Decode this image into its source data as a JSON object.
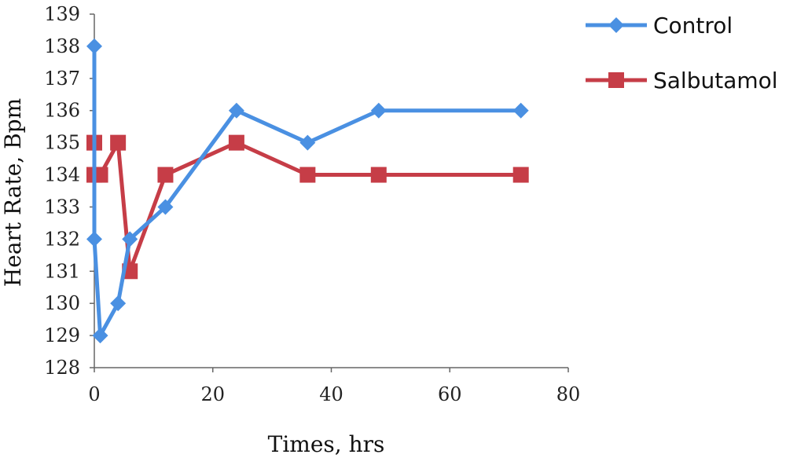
{
  "chart_data": {
    "type": "line",
    "title": "",
    "xlabel": "Times, hrs",
    "ylabel": "Heart Rate, Bpm",
    "xlim": [
      0,
      80
    ],
    "ylim": [
      128,
      139
    ],
    "xticks": [
      0,
      20,
      40,
      60,
      80
    ],
    "yticks": [
      128,
      129,
      130,
      131,
      132,
      133,
      134,
      135,
      136,
      137,
      138,
      139
    ],
    "grid": false,
    "legend_position": "top-right",
    "series": [
      {
        "name": "Control",
        "color": "#4a90e2",
        "marker": "diamond",
        "x": [
          0,
          0,
          1,
          4,
          6,
          12,
          24,
          36,
          48,
          72
        ],
        "values": [
          138,
          132,
          129,
          130,
          132,
          133,
          136,
          135,
          136,
          136
        ]
      },
      {
        "name": "Salbutamol",
        "color": "#c63d47",
        "marker": "square",
        "x": [
          0,
          0,
          1,
          4,
          6,
          12,
          24,
          36,
          48,
          72
        ],
        "values": [
          135,
          134,
          134,
          135,
          131,
          134,
          135,
          134,
          134,
          134
        ]
      }
    ]
  }
}
